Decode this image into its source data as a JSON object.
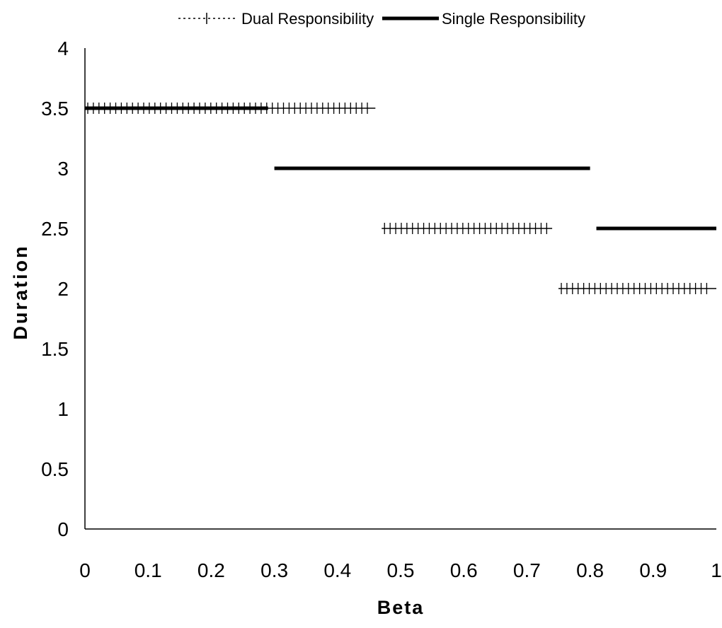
{
  "chart_data": {
    "type": "line",
    "title": "",
    "xlabel": "Beta",
    "ylabel": "Duration",
    "xlim": [
      0,
      1
    ],
    "ylim": [
      0,
      4
    ],
    "x_ticks": [
      "0",
      "0.1",
      "0.2",
      "0.3",
      "0.4",
      "0.5",
      "0.6",
      "0.7",
      "0.8",
      "0.9",
      "1"
    ],
    "y_ticks": [
      "0",
      "0.5",
      "1",
      "1.5",
      "2",
      "2.5",
      "3",
      "3.5",
      "4"
    ],
    "grid": false,
    "legend_position": "top",
    "series": [
      {
        "name": "Dual Responsibility",
        "style": "dotted-with-plus-markers",
        "color": "#000000",
        "segments": [
          {
            "x_start": 0.0,
            "x_end": 0.46,
            "y": 3.5
          },
          {
            "x_start": 0.47,
            "x_end": 0.74,
            "y": 2.5
          },
          {
            "x_start": 0.75,
            "x_end": 1.0,
            "y": 2.0
          }
        ]
      },
      {
        "name": "Single Responsibility",
        "style": "solid-thick",
        "color": "#000000",
        "segments": [
          {
            "x_start": 0.0,
            "x_end": 0.29,
            "y": 3.5
          },
          {
            "x_start": 0.3,
            "x_end": 0.8,
            "y": 3.0
          },
          {
            "x_start": 0.81,
            "x_end": 1.0,
            "y": 2.5
          }
        ]
      }
    ]
  }
}
